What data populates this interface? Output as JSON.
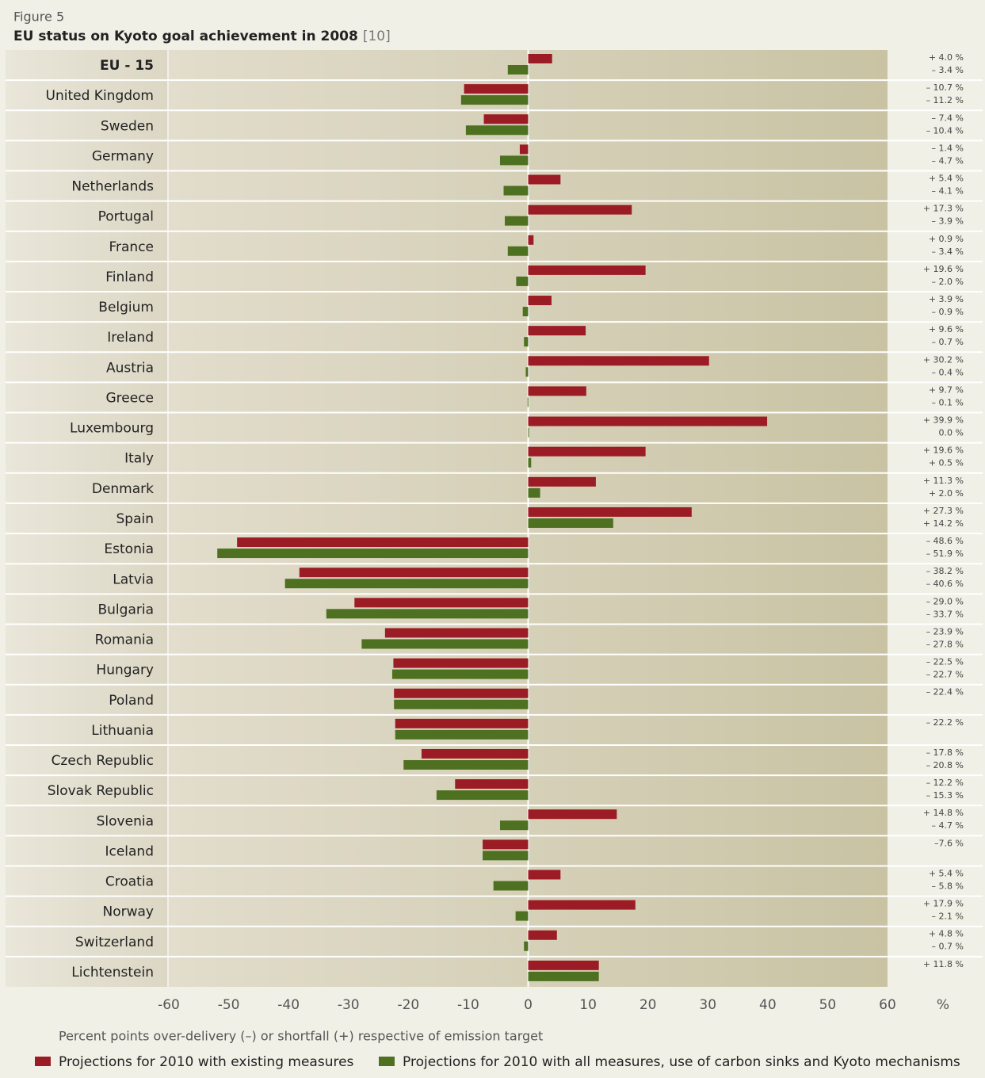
{
  "chart_data": {
    "type": "hbar",
    "figure_label": "Figure 5",
    "title": "EU status on Kyoto goal achievement in 2008",
    "reference": "[10]",
    "xlabel": "Percent points over-delivery (–) or shortfall (+) respective of emission target",
    "unit": "%",
    "xlim": [
      -60,
      60
    ],
    "xticks": [
      -60,
      -50,
      -40,
      -30,
      -20,
      -10,
      0,
      10,
      20,
      30,
      40,
      50,
      60
    ],
    "categories": [
      "EU - 15",
      "United Kingdom",
      "Sweden",
      "Germany",
      "Netherlands",
      "Portugal",
      "France",
      "Finland",
      "Belgium",
      "Ireland",
      "Austria",
      "Greece",
      "Luxembourg",
      "Italy",
      "Denmark",
      "Spain",
      "Estonia",
      "Latvia",
      "Bulgaria",
      "Romania",
      "Hungary",
      "Poland",
      "Lithuania",
      "Czech Republic",
      "Slovak Republic",
      "Slovenia",
      "Iceland",
      "Croatia",
      "Norway",
      "Switzerland",
      "Lichtenstein"
    ],
    "series": [
      {
        "name": "Projections for 2010 with existing measures",
        "color": "#9b1c24",
        "values": [
          4.0,
          -10.7,
          -7.4,
          -1.4,
          5.4,
          17.3,
          0.9,
          19.6,
          3.9,
          9.6,
          30.2,
          9.7,
          39.9,
          19.6,
          11.3,
          27.3,
          -48.6,
          -38.2,
          -29.0,
          -23.9,
          -22.5,
          -22.4,
          -22.2,
          -17.8,
          -12.2,
          14.8,
          -7.6,
          5.4,
          17.9,
          4.8,
          11.8
        ],
        "value_labels": [
          "+ 4.0 %",
          "– 10.7 %",
          "– 7.4 %",
          "– 1.4 %",
          "+ 5.4 %",
          "+ 17.3 %",
          "+ 0.9 %",
          "+ 19.6 %",
          "+ 3.9 %",
          "+ 9.6 %",
          "+ 30.2 %",
          "+ 9.7 %",
          "+ 39.9 %",
          "+ 19.6 %",
          "+ 11.3 %",
          "+ 27.3 %",
          "– 48.6 %",
          "– 38.2 %",
          "– 29.0 %",
          "– 23.9 %",
          "– 22.5 %",
          "– 22.4 %",
          "– 22.2 %",
          "– 17.8 %",
          "– 12.2 %",
          "+ 14.8 %",
          "–7.6 %",
          "+ 5.4 %",
          "+ 17.9 %",
          "+ 4.8 %",
          "+ 11.8 %"
        ]
      },
      {
        "name": "Projections for 2010 with all measures, use of carbon sinks and Kyoto mechanisms",
        "color": "#4e7121",
        "values": [
          -3.4,
          -11.2,
          -10.4,
          -4.7,
          -4.1,
          -3.9,
          -3.4,
          -2.0,
          -0.9,
          -0.7,
          -0.4,
          -0.1,
          0.0,
          0.5,
          2.0,
          14.2,
          -51.9,
          -40.6,
          -33.7,
          -27.8,
          -22.7,
          -22.4,
          -22.2,
          -20.8,
          -15.3,
          -4.7,
          -7.6,
          -5.8,
          -2.1,
          -0.7,
          11.8
        ],
        "value_labels": [
          "– 3.4 %",
          "– 11.2 %",
          "– 10.4 %",
          "– 4.7 %",
          "– 4.1 %",
          "– 3.9 %",
          "– 3.4 %",
          "– 2.0 %",
          "– 0.9 %",
          "– 0.7 %",
          "– 0.4 %",
          "– 0.1 %",
          "0.0 %",
          "+ 0.5 %",
          "+ 2.0 %",
          "+ 14.2 %",
          "– 51.9 %",
          "– 40.6 %",
          "– 33.7 %",
          "– 27.8 %",
          "– 22.7 %",
          null,
          null,
          "– 20.8 %",
          "– 15.3 %",
          "– 4.7 %",
          null,
          "– 5.8 %",
          "– 2.1 %",
          "– 0.7 %",
          null
        ]
      }
    ]
  }
}
